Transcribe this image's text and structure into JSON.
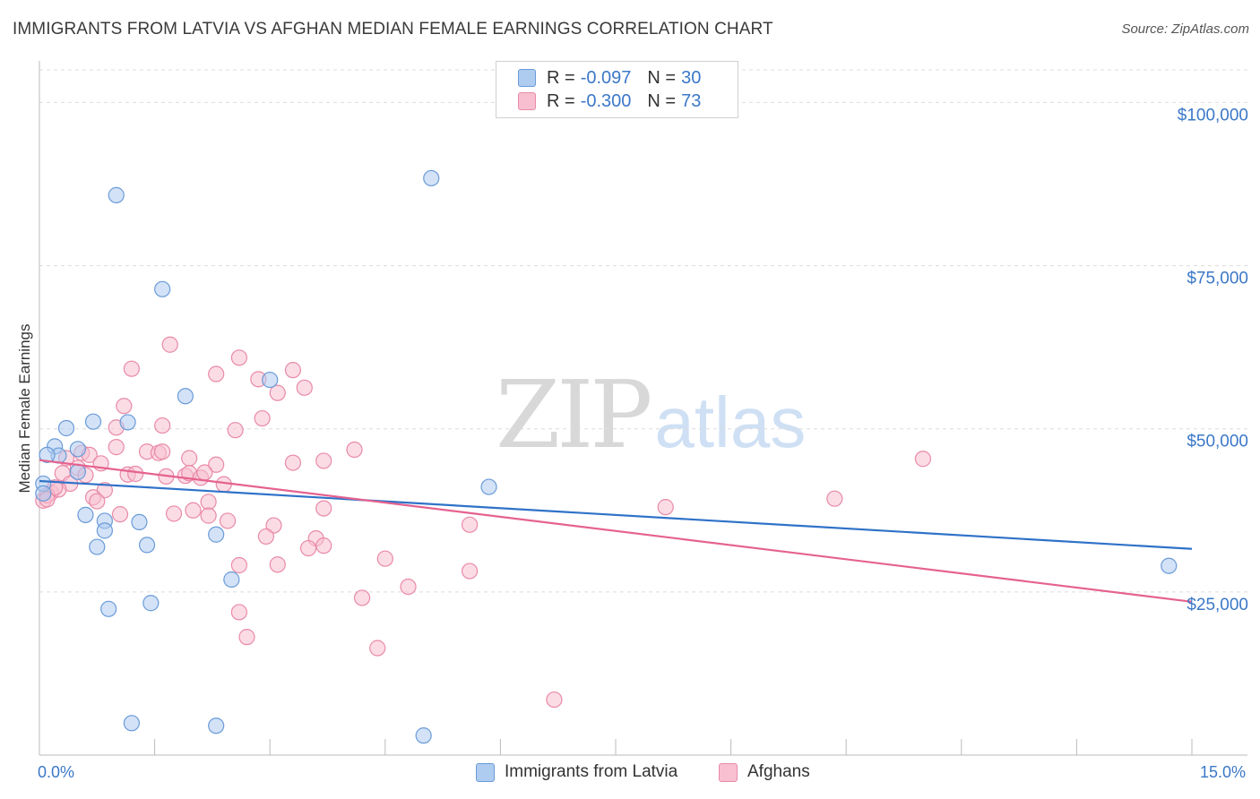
{
  "title": "IMMIGRANTS FROM LATVIA VS AFGHAN MEDIAN FEMALE EARNINGS CORRELATION CHART",
  "source": "Source: ZipAtlas.com",
  "watermark": {
    "part1": "ZIP",
    "part2": "atlas"
  },
  "legend_top": [
    {
      "r_label": "R =",
      "r_value": "-0.097",
      "n_label": "N =",
      "n_value": "30"
    },
    {
      "r_label": "R =",
      "r_value": "-0.300",
      "n_label": "N =",
      "n_value": "73"
    }
  ],
  "legend_bottom": [
    {
      "label": "Immigrants from Latvia"
    },
    {
      "label": "Afghans"
    }
  ],
  "x_tick_labels": {
    "left": "0.0%",
    "right": "15.0%"
  },
  "colors": {
    "latvia_fill": "#aecbf0",
    "latvia_stroke": "#6a9bd8",
    "latvia_line": "#2f72c8",
    "afghan_fill": "#f7bfd0",
    "afghan_stroke": "#e98aa8",
    "afghan_line": "#e5628f",
    "axis_text": "#3b78c8",
    "grid": "#dcdcdc"
  },
  "chart_data": {
    "type": "scatter",
    "title": "IMMIGRANTS FROM LATVIA VS AFGHAN MEDIAN FEMALE EARNINGS CORRELATION CHART",
    "xlabel": "",
    "ylabel": "Median Female Earnings",
    "xlim": [
      0,
      15
    ],
    "ylim": [
      0,
      105000
    ],
    "x_unit": "%",
    "y_ticks": [
      {
        "value": 25000,
        "label": "$25,000"
      },
      {
        "value": 50000,
        "label": "$50,000"
      },
      {
        "value": 75000,
        "label": "$75,000"
      },
      {
        "value": 100000,
        "label": "$100,000"
      }
    ],
    "grid": true,
    "legend_position": "top-center",
    "series": [
      {
        "name": "Immigrants from Latvia",
        "r": -0.097,
        "n": 30,
        "trend": {
          "x": [
            0,
            15
          ],
          "y": [
            42000,
            31600
          ]
        },
        "points": [
          [
            1.0,
            85800
          ],
          [
            5.1,
            88400
          ],
          [
            1.6,
            71400
          ],
          [
            1.9,
            55000
          ],
          [
            3.0,
            57500
          ],
          [
            0.35,
            50100
          ],
          [
            0.7,
            51100
          ],
          [
            1.15,
            51000
          ],
          [
            0.2,
            47300
          ],
          [
            0.5,
            46900
          ],
          [
            0.25,
            45900
          ],
          [
            0.1,
            46000
          ],
          [
            0.5,
            43400
          ],
          [
            0.05,
            41600
          ],
          [
            0.05,
            40100
          ],
          [
            5.85,
            41100
          ],
          [
            0.6,
            36800
          ],
          [
            0.85,
            35900
          ],
          [
            1.3,
            35700
          ],
          [
            0.85,
            34400
          ],
          [
            2.3,
            33800
          ],
          [
            0.75,
            31900
          ],
          [
            1.4,
            32200
          ],
          [
            2.5,
            26900
          ],
          [
            1.45,
            23300
          ],
          [
            0.9,
            22400
          ],
          [
            14.7,
            29000
          ],
          [
            1.2,
            4900
          ],
          [
            2.3,
            4500
          ],
          [
            5.0,
            3000
          ]
        ]
      },
      {
        "name": "Afghans",
        "r": -0.3,
        "n": 73,
        "trend": {
          "x": [
            0,
            15
          ],
          "y": [
            45200,
            23500
          ]
        },
        "points": [
          [
            1.7,
            62900
          ],
          [
            2.6,
            60900
          ],
          [
            1.2,
            59200
          ],
          [
            2.3,
            58400
          ],
          [
            3.3,
            59000
          ],
          [
            2.85,
            57600
          ],
          [
            3.1,
            55500
          ],
          [
            3.45,
            56300
          ],
          [
            1.1,
            53500
          ],
          [
            2.9,
            51600
          ],
          [
            1.6,
            50500
          ],
          [
            2.55,
            49800
          ],
          [
            1.0,
            50200
          ],
          [
            4.1,
            46800
          ],
          [
            3.7,
            45100
          ],
          [
            3.3,
            44800
          ],
          [
            1.95,
            45500
          ],
          [
            2.3,
            44500
          ],
          [
            1.4,
            46500
          ],
          [
            1.55,
            46300
          ],
          [
            1.6,
            46500
          ],
          [
            1.0,
            47200
          ],
          [
            0.55,
            46300
          ],
          [
            0.65,
            46000
          ],
          [
            0.35,
            45500
          ],
          [
            0.5,
            44000
          ],
          [
            0.8,
            44700
          ],
          [
            0.3,
            43200
          ],
          [
            1.15,
            43000
          ],
          [
            1.65,
            42700
          ],
          [
            1.9,
            42800
          ],
          [
            1.95,
            43200
          ],
          [
            2.1,
            42500
          ],
          [
            2.4,
            41500
          ],
          [
            2.15,
            43300
          ],
          [
            0.4,
            41600
          ],
          [
            0.85,
            40600
          ],
          [
            0.15,
            40200
          ],
          [
            0.05,
            39000
          ],
          [
            0.25,
            40700
          ],
          [
            0.7,
            39500
          ],
          [
            1.05,
            36900
          ],
          [
            1.75,
            37000
          ],
          [
            2.0,
            37500
          ],
          [
            2.2,
            38800
          ],
          [
            2.45,
            35900
          ],
          [
            3.05,
            35200
          ],
          [
            3.7,
            37800
          ],
          [
            5.6,
            35300
          ],
          [
            8.15,
            38000
          ],
          [
            10.35,
            39300
          ],
          [
            11.5,
            45400
          ],
          [
            2.95,
            33500
          ],
          [
            3.6,
            33200
          ],
          [
            3.7,
            32100
          ],
          [
            3.5,
            31700
          ],
          [
            4.5,
            30100
          ],
          [
            2.6,
            29100
          ],
          [
            3.1,
            29200
          ],
          [
            5.6,
            28200
          ],
          [
            4.8,
            25800
          ],
          [
            4.2,
            24100
          ],
          [
            2.6,
            21900
          ],
          [
            2.7,
            18100
          ],
          [
            4.4,
            16400
          ],
          [
            6.7,
            8500
          ],
          [
            0.1,
            39800
          ],
          [
            0.2,
            41000
          ],
          [
            0.6,
            42900
          ],
          [
            1.25,
            43100
          ],
          [
            2.2,
            36700
          ],
          [
            0.75,
            38900
          ],
          [
            0.1,
            39200
          ]
        ]
      }
    ]
  }
}
